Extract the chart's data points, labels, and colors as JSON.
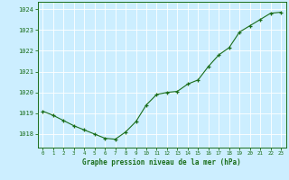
{
  "x": [
    0,
    1,
    2,
    3,
    4,
    5,
    6,
    7,
    8,
    9,
    10,
    11,
    12,
    13,
    14,
    15,
    16,
    17,
    18,
    19,
    20,
    21,
    22,
    23
  ],
  "y": [
    1019.1,
    1018.9,
    1018.65,
    1018.4,
    1018.2,
    1018.0,
    1017.8,
    1017.75,
    1018.1,
    1018.6,
    1019.4,
    1019.9,
    1020.0,
    1020.05,
    1020.4,
    1020.6,
    1021.25,
    1021.8,
    1022.15,
    1022.9,
    1023.2,
    1023.5,
    1023.8,
    1023.85
  ],
  "bg_color": "#cceeff",
  "line_color": "#1a6e1a",
  "marker_color": "#1a6e1a",
  "grid_color": "#ffffff",
  "xlabel": "Graphe pression niveau de la mer (hPa)",
  "xlabel_color": "#1a6e1a",
  "ylabel_ticks": [
    1018,
    1019,
    1020,
    1021,
    1022,
    1023,
    1024
  ],
  "ylim": [
    1017.35,
    1024.35
  ],
  "xlim": [
    -0.5,
    23.5
  ],
  "tick_color": "#1a6e1a",
  "spine_color": "#1a6e1a",
  "xtick_labels": [
    "0",
    "1",
    "2",
    "3",
    "4",
    "5",
    "6",
    "7",
    "8",
    "9",
    "10",
    "11",
    "12",
    "13",
    "14",
    "15",
    "16",
    "17",
    "18",
    "19",
    "20",
    "21",
    "22",
    "23"
  ]
}
